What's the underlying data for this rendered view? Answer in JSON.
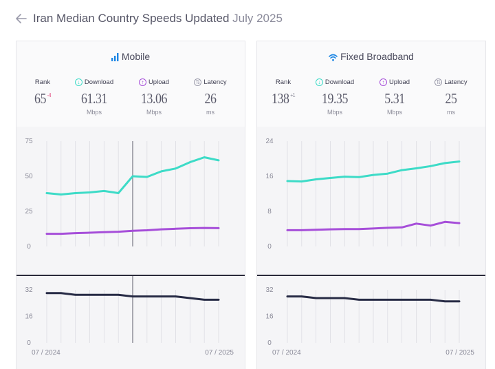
{
  "header": {
    "title": "Iran Median Country Speeds Updated",
    "date": "July 2025"
  },
  "colors": {
    "download": "#3ddbc7",
    "upload": "#a64ed9",
    "latency": "#272b45",
    "rank_down": "#e0457b",
    "grid": "#dcdce2"
  },
  "panels": [
    {
      "title": "Mobile",
      "icon": "signal-bars-icon",
      "stats": {
        "rank": {
          "label": "Rank",
          "value": "65",
          "change": "-4"
        },
        "download": {
          "label": "Download",
          "value": "61.31",
          "unit": "Mbps"
        },
        "upload": {
          "label": "Upload",
          "value": "13.06",
          "unit": "Mbps"
        },
        "latency": {
          "label": "Latency",
          "value": "26",
          "unit": "ms"
        }
      }
    },
    {
      "title": "Fixed Broadband",
      "icon": "wifi-icon",
      "stats": {
        "rank": {
          "label": "Rank",
          "value": "138",
          "change": "+1"
        },
        "download": {
          "label": "Download",
          "value": "19.35",
          "unit": "Mbps"
        },
        "upload": {
          "label": "Upload",
          "value": "5.31",
          "unit": "Mbps"
        },
        "latency": {
          "label": "Latency",
          "value": "25",
          "unit": "ms"
        }
      }
    }
  ],
  "chart_data": [
    {
      "type": "line",
      "title": "Mobile",
      "x": [
        "07 / 2024",
        "08 / 2024",
        "09 / 2024",
        "10 / 2024",
        "11 / 2024",
        "12 / 2024",
        "01 / 2025",
        "02 / 2025",
        "03 / 2025",
        "04 / 2025",
        "05 / 2025",
        "06 / 2025",
        "07 / 2025"
      ],
      "x_tick_labels": [
        "07 / 2024",
        "07 / 2025"
      ],
      "speed_ylim": [
        0,
        75
      ],
      "speed_yticks": [
        0,
        25,
        50,
        75
      ],
      "latency_ylim": [
        0,
        32
      ],
      "latency_yticks": [
        0,
        16,
        32
      ],
      "marker_index": 6,
      "series": [
        {
          "name": "Download",
          "values": [
            38,
            37,
            38,
            38.5,
            39.5,
            38,
            50,
            49.5,
            53.5,
            55.5,
            60,
            63.5,
            61.3
          ]
        },
        {
          "name": "Upload",
          "values": [
            9,
            9,
            9.5,
            9.8,
            10.2,
            10.5,
            11.2,
            11.5,
            12.2,
            12.6,
            13,
            13.2,
            13.06
          ]
        },
        {
          "name": "Latency",
          "values": [
            30,
            30,
            29,
            29,
            29,
            29,
            28,
            28,
            28,
            28,
            27,
            26,
            26
          ]
        }
      ]
    },
    {
      "type": "line",
      "title": "Fixed Broadband",
      "x": [
        "07 / 2024",
        "08 / 2024",
        "09 / 2024",
        "10 / 2024",
        "11 / 2024",
        "12 / 2024",
        "01 / 2025",
        "02 / 2025",
        "03 / 2025",
        "04 / 2025",
        "05 / 2025",
        "06 / 2025",
        "07 / 2025"
      ],
      "x_tick_labels": [
        "07 / 2024",
        "07 / 2025"
      ],
      "speed_ylim": [
        0,
        24
      ],
      "speed_yticks": [
        0,
        8,
        16,
        24
      ],
      "latency_ylim": [
        0,
        32
      ],
      "latency_yticks": [
        0,
        16,
        32
      ],
      "marker_index": null,
      "series": [
        {
          "name": "Download",
          "values": [
            14.9,
            14.8,
            15.3,
            15.6,
            15.9,
            15.8,
            16.3,
            16.6,
            17.4,
            17.8,
            18.3,
            19,
            19.35
          ]
        },
        {
          "name": "Upload",
          "values": [
            3.7,
            3.7,
            3.8,
            3.9,
            3.95,
            3.95,
            4.1,
            4.25,
            4.35,
            5.2,
            4.75,
            5.6,
            5.31
          ]
        },
        {
          "name": "Latency",
          "values": [
            28,
            28,
            27,
            27,
            27,
            26,
            26,
            26,
            26,
            26,
            26,
            25,
            25
          ]
        }
      ]
    }
  ]
}
